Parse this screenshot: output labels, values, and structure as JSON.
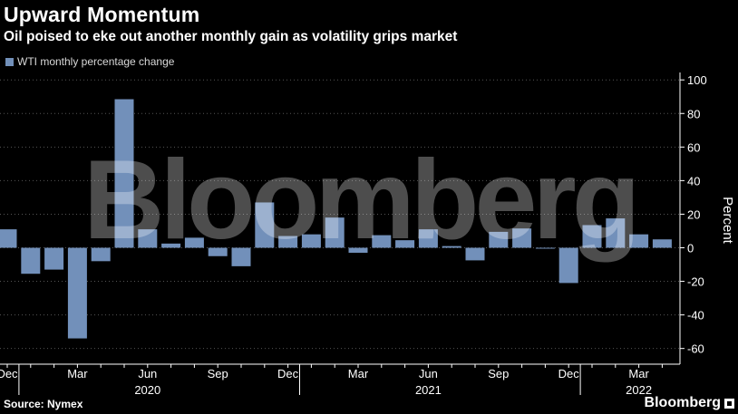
{
  "header": {
    "title": "Upward Momentum",
    "subtitle": "Oil poised to eke out another monthly gain as volatility grips market"
  },
  "legend": {
    "label": "WTI monthly percentage change"
  },
  "footer": {
    "source": "Source: Nymex",
    "brand": "Bloomberg"
  },
  "watermark": "Bloomberg",
  "colors": {
    "bar": "#7290ba",
    "background": "#000000",
    "grid": "#555555"
  },
  "chart_data": {
    "type": "bar",
    "series": [
      {
        "name": "WTI monthly percentage change",
        "categories": [
          "2019-12",
          "2020-01",
          "2020-02",
          "2020-03",
          "2020-04",
          "2020-05",
          "2020-06",
          "2020-07",
          "2020-08",
          "2020-09",
          "2020-10",
          "2020-11",
          "2020-12",
          "2021-01",
          "2021-02",
          "2021-03",
          "2021-04",
          "2021-05",
          "2021-06",
          "2021-07",
          "2021-08",
          "2021-09",
          "2021-10",
          "2021-11",
          "2021-12",
          "2022-01",
          "2022-02",
          "2022-03",
          "2022-04"
        ],
        "values": [
          11,
          -15.5,
          -13,
          -54,
          -8,
          88.5,
          11,
          2.5,
          6,
          -5,
          -11,
          27,
          7,
          8,
          18,
          -3,
          7.5,
          4.5,
          11,
          1,
          -7.5,
          9.5,
          11.5,
          0,
          -21,
          13.5,
          17.5,
          8,
          5
        ]
      }
    ],
    "ylabel": "Percent",
    "ylim": [
      -60,
      100
    ],
    "yticks": [
      -60,
      -40,
      -20,
      0,
      20,
      40,
      60,
      80,
      100
    ],
    "x_tick_labels": [
      "Dec",
      "Mar",
      "Jun",
      "Sep",
      "Dec",
      "Mar",
      "Jun",
      "Sep",
      "Dec",
      "Mar"
    ],
    "x_tick_positions": [
      0,
      3,
      6,
      9,
      12,
      15,
      18,
      21,
      24,
      27
    ],
    "year_labels": [
      {
        "label": "2020",
        "position": 6
      },
      {
        "label": "2021",
        "position": 18
      },
      {
        "label": "2022",
        "position": 27
      }
    ],
    "year_separators": [
      1,
      13,
      25
    ],
    "grid": true,
    "legend_position": "top-left"
  }
}
